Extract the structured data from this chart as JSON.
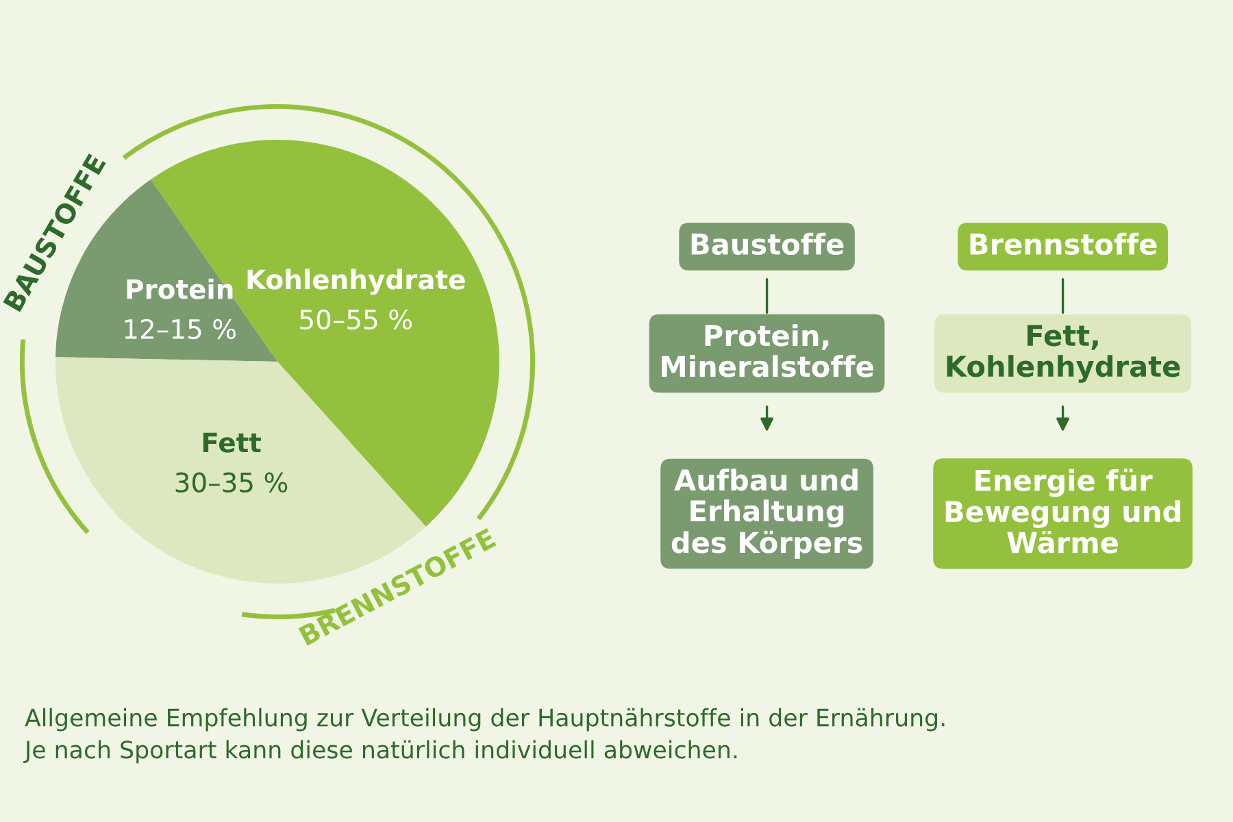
{
  "chart_data": {
    "type": "pie",
    "categories": [
      "Kohlenhydrate",
      "Protein",
      "Fett"
    ],
    "values": [
      48,
      15,
      37
    ],
    "colors": [
      "#94c13d",
      "#7a9a6f",
      "#dde8c0"
    ],
    "legend": false,
    "annotations": [
      "BAUSTOFFE",
      "BRENNSTOFFE",
      "Baustoffe",
      "Brennstoffe",
      "Protein,\nMineralstoffe",
      "Fett,\nKohlenhydrate",
      "Aufbau und\nErhaltung\ndes Körpers",
      "Energie für\nBewegung und\nWärme",
      "Allgemeine Empfehlung zur Verteilung der Hauptnährstoffe in der Ernährung.\nJe nach Sportart kann diese natürlich individuell abweichen.",
      "50–55 %",
      "12–15 %",
      "30–35 %"
    ]
  }
}
